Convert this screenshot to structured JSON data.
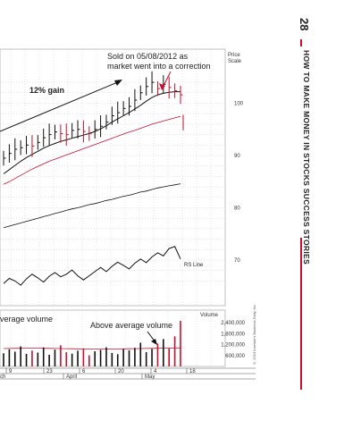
{
  "page": {
    "number": "28",
    "title": "HOW TO MAKE MONEY IN STOCKS SUCCESS STORIES",
    "copyright": "© 2013 Investor's Business Daily, Inc."
  },
  "chart_data": {
    "type": "line",
    "price_scale_label": [
      "Price",
      "Scale"
    ],
    "price_ticks": [
      70,
      80,
      90,
      100
    ],
    "volume_label": "Volume",
    "volume_ticks": [
      "600,000",
      "1,200,000",
      "1,800,000",
      "2,400,000"
    ],
    "volume_tick_values": [
      600000,
      1200000,
      1800000,
      2400000
    ],
    "date_ticks": [
      "9",
      "23",
      "6",
      "20",
      "4",
      "18"
    ],
    "month_labels": [
      "ch",
      "April",
      "May"
    ],
    "annotations": {
      "sold": [
        "Sold on 05/08/2012 as",
        "market went into a correction"
      ],
      "gain": "12% gain",
      "volume_left": "verage volume",
      "volume_above": "Above average volume",
      "rs_line": "RS Line"
    },
    "series": [
      {
        "name": "price",
        "values": [
          89.5,
          90.4,
          91.2,
          91.5,
          92.0,
          91.8,
          92.5,
          93.4,
          94.0,
          94.5,
          94.2,
          94.0,
          94.8,
          95.0,
          94.6,
          94.2,
          95.0,
          95.6,
          96.4,
          97.6,
          98.2,
          99.0,
          99.4,
          100.6,
          102.0,
          103.2,
          104.0,
          102.8,
          103.6,
          103.0,
          102.4,
          101.6
        ]
      },
      {
        "name": "moving_average_short",
        "values": [
          86.5,
          87.3,
          88.1,
          88.9,
          89.6,
          90.2,
          90.8,
          91.4,
          91.9,
          92.3,
          92.7,
          93.0,
          93.3,
          93.6,
          93.9,
          94.2,
          94.6,
          95.1,
          95.7,
          96.4,
          97.0,
          97.6,
          98.2,
          98.9,
          99.6,
          100.4,
          101.1,
          101.6,
          101.9,
          102.1,
          102.2,
          102.2
        ]
      },
      {
        "name": "moving_average_long",
        "values": [
          84.5,
          85.0,
          85.6,
          86.2,
          86.8,
          87.4,
          87.9,
          88.4,
          88.9,
          89.3,
          89.7,
          90.1,
          90.5,
          90.9,
          91.3,
          91.7,
          92.1,
          92.5,
          92.9,
          93.3,
          93.7,
          94.1,
          94.5,
          94.8,
          95.2,
          95.6,
          96.0,
          96.3,
          96.6,
          96.9,
          97.2,
          97.5
        ]
      },
      {
        "name": "baseline",
        "values": [
          76.2,
          76.5,
          76.8,
          77.1,
          77.4,
          77.7,
          78.0,
          78.3,
          78.6,
          78.9,
          79.2,
          79.5,
          79.8,
          80.0,
          80.3,
          80.6,
          80.8,
          81.1,
          81.4,
          81.6,
          81.9,
          82.2,
          82.4,
          82.7,
          83.0,
          83.2,
          83.5,
          83.8,
          84.0,
          84.2,
          84.4,
          84.6
        ]
      },
      {
        "name": "RS Line",
        "values": [
          65.5,
          66.5,
          66.0,
          65.2,
          66.4,
          67.3,
          66.6,
          65.8,
          66.9,
          67.6,
          66.8,
          67.3,
          68.1,
          67.0,
          66.2,
          67.0,
          67.8,
          68.6,
          67.8,
          68.8,
          69.6,
          69.0,
          68.3,
          69.4,
          70.2,
          69.5,
          70.6,
          71.4,
          70.8,
          72.2,
          72.6,
          70.2
        ]
      }
    ],
    "volume": [
      720000,
      940000,
      810000,
      1100000,
      690000,
      870000,
      760000,
      1040000,
      640000,
      920000,
      1160000,
      780000,
      700000,
      860000,
      990000,
      610000,
      830000,
      910000,
      1050000,
      740000,
      670000,
      950000,
      880000,
      1020000,
      1300000,
      780000,
      960000,
      1250000,
      1500000,
      990000,
      1650000,
      2500000
    ],
    "volume_average": [
      980000,
      985000,
      990000,
      995000,
      1000000,
      1000000,
      1000000,
      995000,
      990000,
      985000,
      980000,
      975000,
      970000,
      965000,
      960000,
      955000,
      950000,
      950000,
      950000,
      955000,
      960000,
      965000,
      970000,
      975000,
      980000,
      985000,
      990000,
      995000,
      1000000,
      1005000,
      1010000,
      1020000
    ]
  }
}
